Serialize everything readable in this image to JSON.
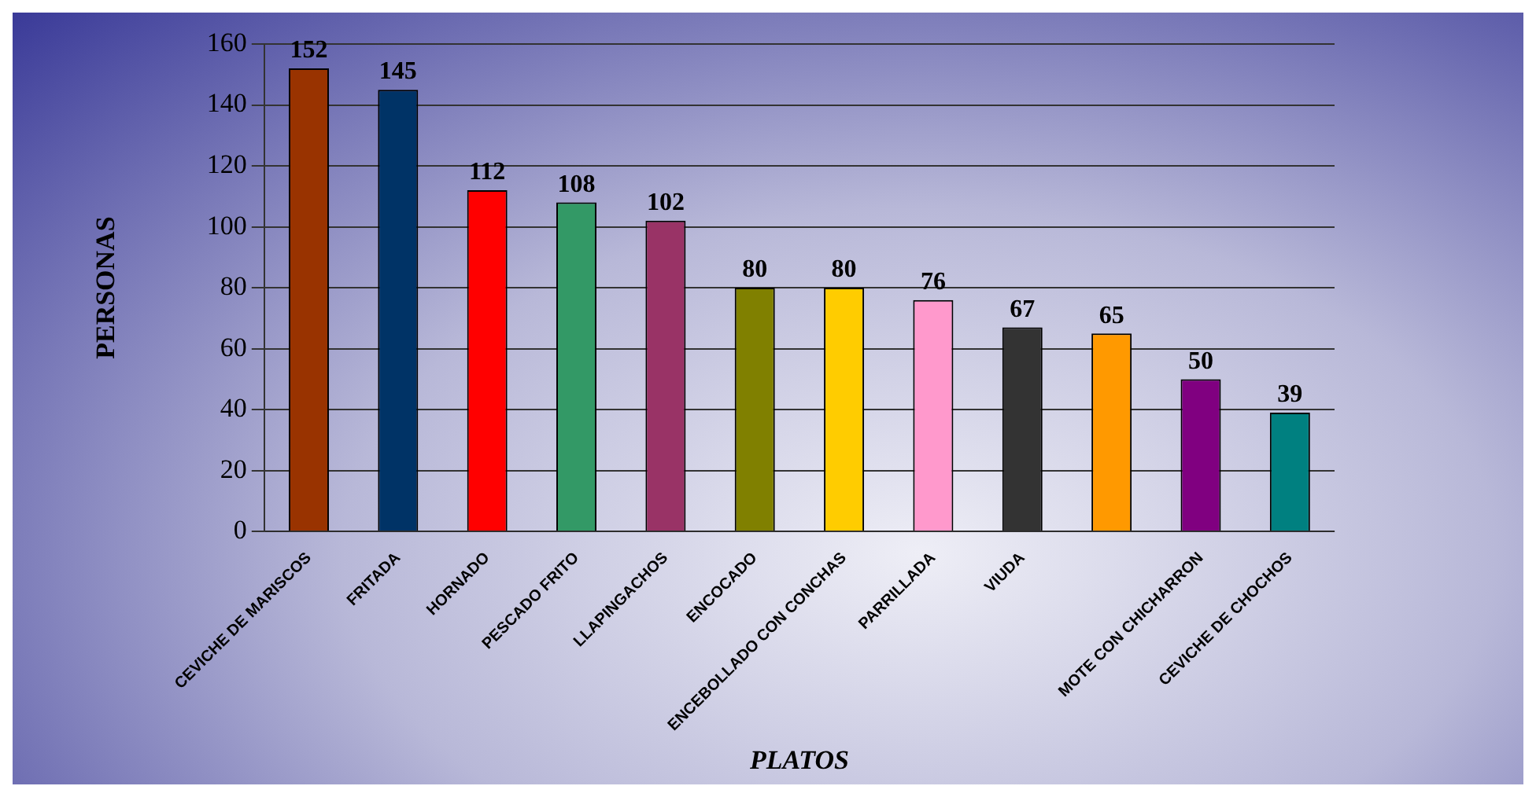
{
  "chart_data": {
    "type": "bar",
    "xlabel": "PLATOS",
    "ylabel": "PERSONAS",
    "categories": [
      "CEVICHE DE MARISCOS",
      "FRITADA",
      "HORNADO",
      "PESCADO FRITO",
      "LLAPINGACHOS",
      "ENCOCADO",
      "ENCEBOLLADO CON CONCHAS",
      "PARRILLADA",
      "VIUDA",
      null,
      "MOTE CON CHICHARRON",
      "CEVICHE DE CHOCHOS"
    ],
    "values": [
      152,
      145,
      112,
      108,
      102,
      80,
      80,
      76,
      67,
      65,
      50,
      39
    ],
    "colors": [
      "#993300",
      "#003366",
      "#ff0000",
      "#339966",
      "#993366",
      "#808000",
      "#ffcc00",
      "#ff99cc",
      "#333333",
      "#ff9900",
      "#800080",
      "#008080"
    ],
    "ylim": [
      0,
      160
    ],
    "yticks": [
      0,
      20,
      40,
      60,
      80,
      100,
      120,
      140,
      160
    ],
    "grid": "y",
    "data_labels": true,
    "legend": false
  }
}
